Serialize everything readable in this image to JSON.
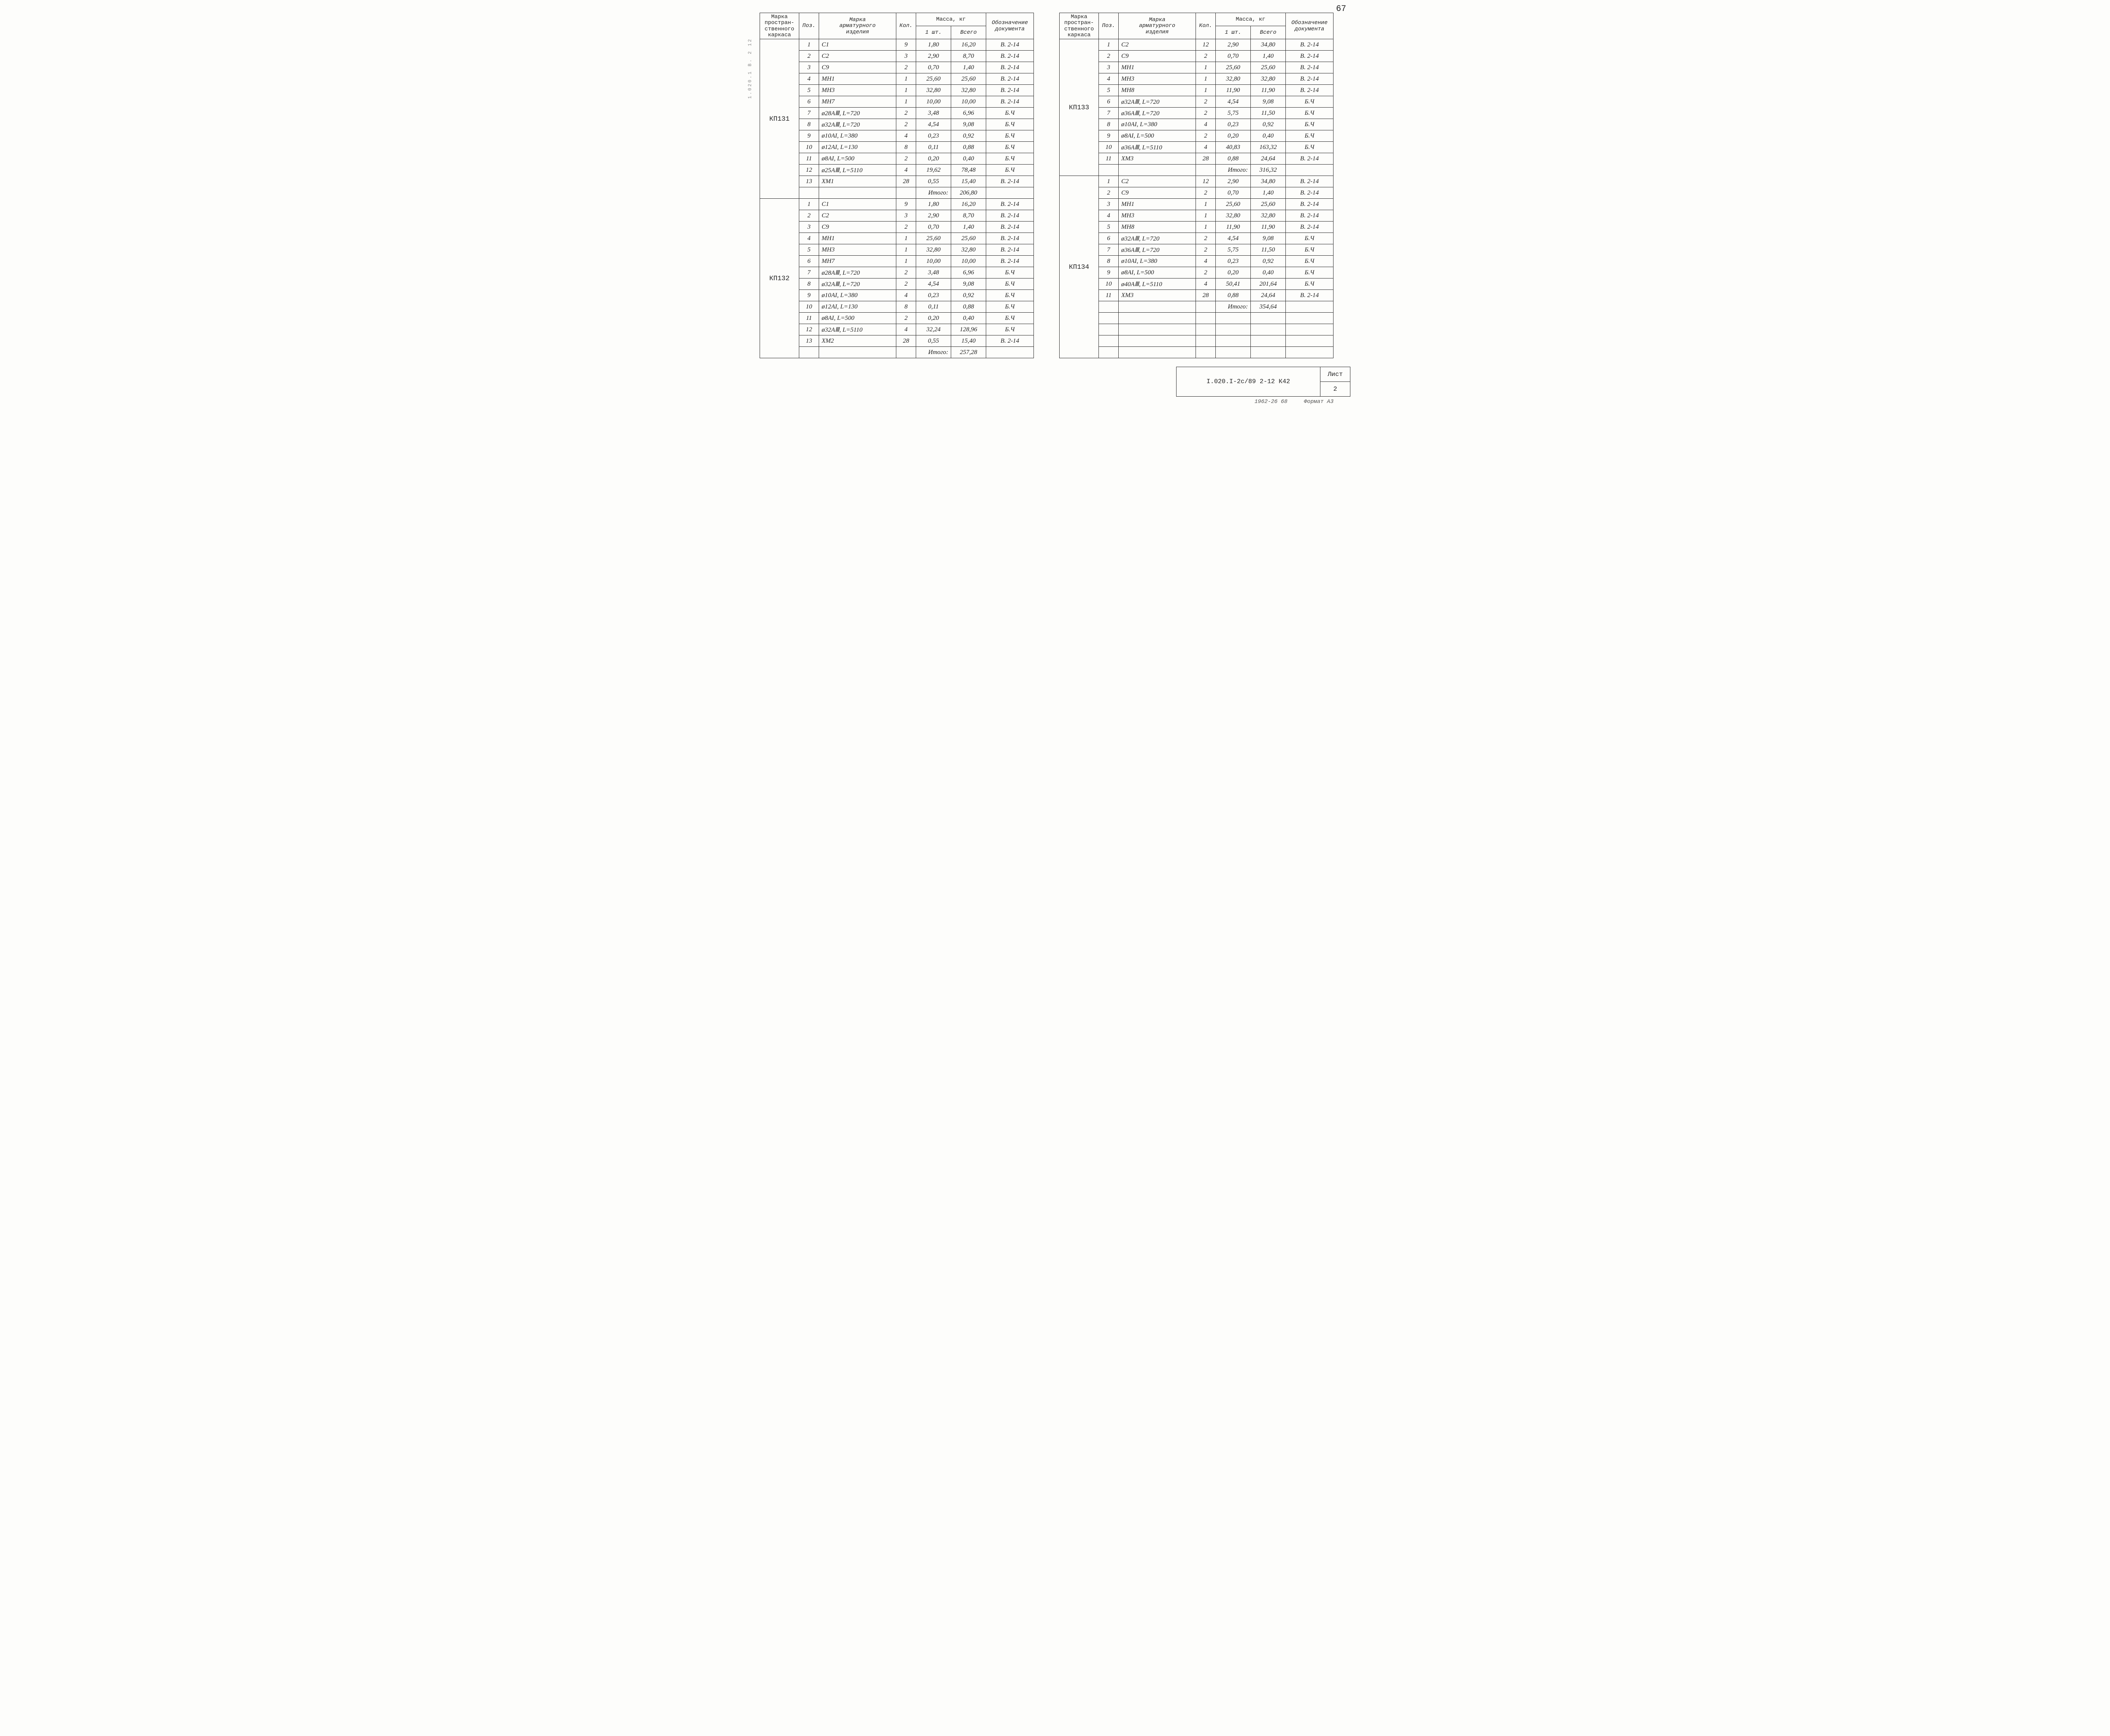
{
  "page": {
    "number_top": "67"
  },
  "side_text": "1.020.1  В. 2 12",
  "headers": {
    "marka_karkasa": "Марка\nпростран-\nственного\nкаркаса",
    "poz": "Поз.",
    "marka_izdeliya": "Марка\nарматурного\nизделия",
    "kol": "Кол.",
    "massa": "Масса, кг",
    "massa_1": "1 шт.",
    "massa_vsego": "Всего",
    "doc": "Обозначение\nдокумента"
  },
  "left_groups": [
    {
      "label": "КП131",
      "rows": [
        {
          "poz": "1",
          "izd": "С1",
          "kol": "9",
          "m1": "1,80",
          "m2": "16,20",
          "doc": "В. 2-14"
        },
        {
          "poz": "2",
          "izd": "С2",
          "kol": "3",
          "m1": "2,90",
          "m2": "8,70",
          "doc": "В. 2-14"
        },
        {
          "poz": "3",
          "izd": "С9",
          "kol": "2",
          "m1": "0,70",
          "m2": "1,40",
          "doc": "В. 2-14"
        },
        {
          "poz": "4",
          "izd": "МН1",
          "kol": "1",
          "m1": "25,60",
          "m2": "25,60",
          "doc": "В. 2-14"
        },
        {
          "poz": "5",
          "izd": "МН3",
          "kol": "1",
          "m1": "32,80",
          "m2": "32,80",
          "doc": "В. 2-14"
        },
        {
          "poz": "6",
          "izd": "МН7",
          "kol": "1",
          "m1": "10,00",
          "m2": "10,00",
          "doc": "В. 2-14"
        },
        {
          "poz": "7",
          "izd": "ø28АⅢ,  L=720",
          "kol": "2",
          "m1": "3,48",
          "m2": "6,96",
          "doc": "Б.Ч"
        },
        {
          "poz": "8",
          "izd": "ø32АⅢ,  L=720",
          "kol": "2",
          "m1": "4,54",
          "m2": "9,08",
          "doc": "Б.Ч"
        },
        {
          "poz": "9",
          "izd": "ø10АI,  L=380",
          "kol": "4",
          "m1": "0,23",
          "m2": "0,92",
          "doc": "Б.Ч"
        },
        {
          "poz": "10",
          "izd": "ø12АI,  L=130",
          "kol": "8",
          "m1": "0,11",
          "m2": "0,88",
          "doc": "Б.Ч"
        },
        {
          "poz": "11",
          "izd": "ø8АI,  L=500",
          "kol": "2",
          "m1": "0,20",
          "m2": "0,40",
          "doc": "Б.Ч"
        },
        {
          "poz": "12",
          "izd": "ø25АⅢ,  L=5110",
          "kol": "4",
          "m1": "19,62",
          "m2": "78,48",
          "doc": "Б.Ч"
        },
        {
          "poz": "13",
          "izd": "ХМ1",
          "kol": "28",
          "m1": "0,55",
          "m2": "15,40",
          "doc": "В. 2-14"
        }
      ],
      "itogo": "206,80"
    },
    {
      "label": "КП132",
      "rows": [
        {
          "poz": "1",
          "izd": "С1",
          "kol": "9",
          "m1": "1,80",
          "m2": "16,20",
          "doc": "В. 2-14"
        },
        {
          "poz": "2",
          "izd": "С2",
          "kol": "3",
          "m1": "2,90",
          "m2": "8,70",
          "doc": "В. 2-14"
        },
        {
          "poz": "3",
          "izd": "С9",
          "kol": "2",
          "m1": "0,70",
          "m2": "1,40",
          "doc": "В. 2-14"
        },
        {
          "poz": "4",
          "izd": "МН1",
          "kol": "1",
          "m1": "25,60",
          "m2": "25,60",
          "doc": "В. 2-14"
        },
        {
          "poz": "5",
          "izd": "МН3",
          "kol": "1",
          "m1": "32,80",
          "m2": "32,80",
          "doc": "В. 2-14"
        },
        {
          "poz": "6",
          "izd": "МН7",
          "kol": "1",
          "m1": "10,00",
          "m2": "10,00",
          "doc": "В. 2-14"
        },
        {
          "poz": "7",
          "izd": "ø28АⅢ,  L=720",
          "kol": "2",
          "m1": "3,48",
          "m2": "6,96",
          "doc": "Б.Ч"
        },
        {
          "poz": "8",
          "izd": "ø32АⅢ,  L=720",
          "kol": "2",
          "m1": "4,54",
          "m2": "9,08",
          "doc": "Б.Ч"
        },
        {
          "poz": "9",
          "izd": "ø10АI,  L=380",
          "kol": "4",
          "m1": "0,23",
          "m2": "0,92",
          "doc": "Б.Ч"
        },
        {
          "poz": "10",
          "izd": "ø12АI,  L=130",
          "kol": "8",
          "m1": "0,11",
          "m2": "0,88",
          "doc": "Б.Ч"
        },
        {
          "poz": "11",
          "izd": "ø8АI,  L=500",
          "kol": "2",
          "m1": "0,20",
          "m2": "0,40",
          "doc": "Б.Ч"
        },
        {
          "poz": "12",
          "izd": "ø32АⅢ,  L=5110",
          "kol": "4",
          "m1": "32,24",
          "m2": "128,96",
          "doc": "Б.Ч"
        },
        {
          "poz": "13",
          "izd": "ХМ2",
          "kol": "28",
          "m1": "0,55",
          "m2": "15,40",
          "doc": "В. 2-14"
        }
      ],
      "itogo": "257,28"
    }
  ],
  "right_groups": [
    {
      "label": "КП133",
      "rows": [
        {
          "poz": "1",
          "izd": "С2",
          "kol": "12",
          "m1": "2,90",
          "m2": "34,80",
          "doc": "В. 2-14"
        },
        {
          "poz": "2",
          "izd": "С9",
          "kol": "2",
          "m1": "0,70",
          "m2": "1,40",
          "doc": "В. 2-14"
        },
        {
          "poz": "3",
          "izd": "МН1",
          "kol": "1",
          "m1": "25,60",
          "m2": "25,60",
          "doc": "В. 2-14"
        },
        {
          "poz": "4",
          "izd": "МН3",
          "kol": "1",
          "m1": "32,80",
          "m2": "32,80",
          "doc": "В. 2-14"
        },
        {
          "poz": "5",
          "izd": "МН8",
          "kol": "1",
          "m1": "11,90",
          "m2": "11,90",
          "doc": "В. 2-14"
        },
        {
          "poz": "6",
          "izd": "ø32АⅢ,  L=720",
          "kol": "2",
          "m1": "4,54",
          "m2": "9,08",
          "doc": "Б.Ч"
        },
        {
          "poz": "7",
          "izd": "ø36АⅢ,  L=720",
          "kol": "2",
          "m1": "5,75",
          "m2": "11,50",
          "doc": "Б.Ч"
        },
        {
          "poz": "8",
          "izd": "ø10АI,  L=380",
          "kol": "4",
          "m1": "0,23",
          "m2": "0,92",
          "doc": "Б.Ч"
        },
        {
          "poz": "9",
          "izd": "ø8АI,  L=500",
          "kol": "2",
          "m1": "0,20",
          "m2": "0,40",
          "doc": "Б.Ч"
        },
        {
          "poz": "10",
          "izd": "ø36АⅢ,  L=5110",
          "kol": "4",
          "m1": "40,83",
          "m2": "163,32",
          "doc": "Б.Ч"
        },
        {
          "poz": "11",
          "izd": "ХМ3",
          "kol": "28",
          "m1": "0,88",
          "m2": "24,64",
          "doc": "В. 2-14"
        }
      ],
      "itogo": "316,32"
    },
    {
      "label": "КП134",
      "rows": [
        {
          "poz": "1",
          "izd": "С2",
          "kol": "12",
          "m1": "2,90",
          "m2": "34,80",
          "doc": "В. 2-14"
        },
        {
          "poz": "2",
          "izd": "С9",
          "kol": "2",
          "m1": "0,70",
          "m2": "1,40",
          "doc": "В. 2-14"
        },
        {
          "poz": "3",
          "izd": "МН1",
          "kol": "1",
          "m1": "25,60",
          "m2": "25,60",
          "doc": "В. 2-14"
        },
        {
          "poz": "4",
          "izd": "МН3",
          "kol": "1",
          "m1": "32,80",
          "m2": "32,80",
          "doc": "В. 2-14"
        },
        {
          "poz": "5",
          "izd": "МН8",
          "kol": "1",
          "m1": "11,90",
          "m2": "11,90",
          "doc": "В. 2-14"
        },
        {
          "poz": "6",
          "izd": "ø32АⅢ,  L=720",
          "kol": "2",
          "m1": "4,54",
          "m2": "9,08",
          "doc": "Б.Ч"
        },
        {
          "poz": "7",
          "izd": "ø36АⅢ,  L=720",
          "kol": "2",
          "m1": "5,75",
          "m2": "11,50",
          "doc": "Б.Ч"
        },
        {
          "poz": "8",
          "izd": "ø10АI,  L=380",
          "kol": "4",
          "m1": "0,23",
          "m2": "0,92",
          "doc": "Б.Ч"
        },
        {
          "poz": "9",
          "izd": "ø8АI,  L=500",
          "kol": "2",
          "m1": "0,20",
          "m2": "0,40",
          "doc": "Б.Ч"
        },
        {
          "poz": "10",
          "izd": "ø40АⅢ,  L=5110",
          "kol": "4",
          "m1": "50,41",
          "m2": "201,64",
          "doc": "Б.Ч"
        },
        {
          "poz": "11",
          "izd": "ХМ3",
          "kol": "28",
          "m1": "0,88",
          "m2": "24,64",
          "doc": "В. 2-14"
        }
      ],
      "itogo": "354,64",
      "blank_after": 4
    }
  ],
  "itogo_label": "Итого:",
  "title_block": {
    "code": "I.020.I-2с/89 2-12 К42",
    "list_label": "Лист",
    "list_num": "2"
  },
  "footer": {
    "line1": "1962-26   68",
    "line2": "Формат А3"
  },
  "style": {
    "border_color": "#333",
    "bg": "#fdfdfb",
    "text_color": "#222",
    "font_data": "italic 15px 'Times New Roman', serif",
    "font_header": "13px 'Courier New', monospace"
  }
}
